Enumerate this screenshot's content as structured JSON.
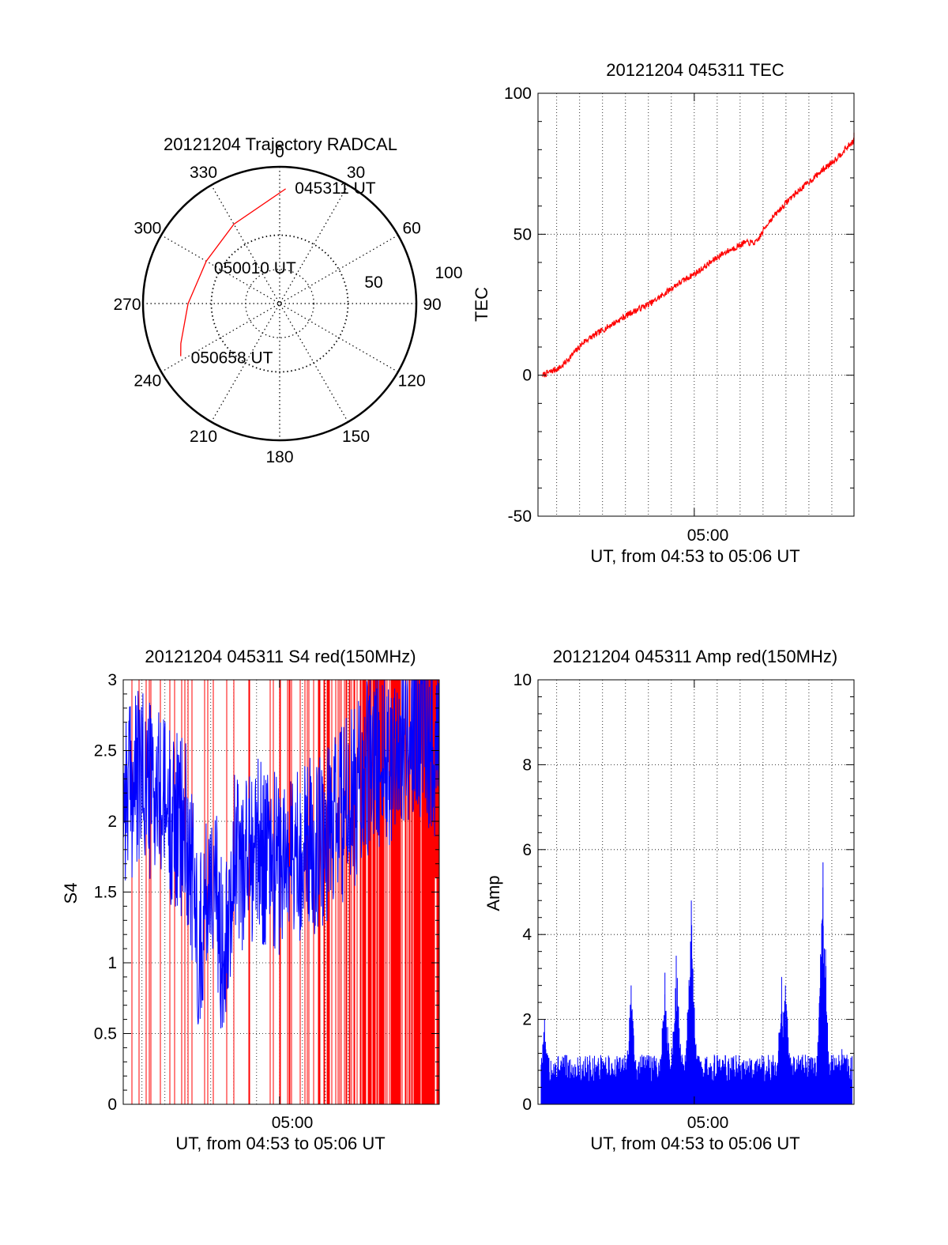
{
  "chart_data": [
    {
      "type": "polar",
      "title": "20121204 Trajectory RADCAL",
      "angle_labels": [
        "0",
        "30",
        "60",
        "90",
        "120",
        "150",
        "180",
        "210",
        "240",
        "270",
        "300",
        "330"
      ],
      "radial_labels": [
        "50",
        "100"
      ],
      "rlim": [
        0,
        100
      ],
      "track_color": "#ff0000",
      "track": [
        {
          "az": 3,
          "r": 84
        },
        {
          "az": 330,
          "r": 67
        },
        {
          "az": 300,
          "r": 62
        },
        {
          "az": 270,
          "r": 67
        },
        {
          "az": 248,
          "r": 78
        },
        {
          "az": 242,
          "r": 82
        }
      ],
      "annotations": [
        {
          "text": "045311 UT",
          "az": 12,
          "r": 87
        },
        {
          "text": "050010 UT",
          "az": 303,
          "r": 49
        },
        {
          "text": "050658 UT",
          "az": 236,
          "r": 70
        }
      ]
    },
    {
      "type": "line",
      "title": "20121204 045311 TEC",
      "xlabel": "UT, from 04:53 to 05:06 UT",
      "ylabel": "TEC",
      "xtick_label": "05:00",
      "xlim": [
        "04:53:11",
        "05:06:58"
      ],
      "ylim": [
        -50,
        100
      ],
      "yticks": [
        "100",
        "50",
        "0",
        "-50"
      ],
      "series": [
        {
          "color": "#ff0000",
          "x": [
            "04:53:11",
            "04:54:00",
            "04:55:00",
            "04:56:00",
            "04:57:00",
            "04:58:00",
            "04:59:00",
            "05:00:00",
            "05:01:00",
            "05:02:00",
            "05:02:30",
            "05:03:00",
            "05:04:00",
            "05:05:00",
            "05:06:00",
            "05:06:58"
          ],
          "y": [
            0,
            3,
            12,
            17,
            22,
            26,
            32,
            37,
            43,
            47,
            47,
            54,
            63,
            70,
            77,
            85
          ]
        }
      ]
    },
    {
      "type": "line",
      "title": "20121204 045311 S4 red(150MHz)",
      "xlabel": "UT, from 04:53 to 05:06 UT",
      "ylabel": "S4",
      "xtick_label": "05:00",
      "xlim": [
        "04:53:11",
        "05:06:58"
      ],
      "ylim": [
        0,
        3
      ],
      "yticks": [
        "3",
        "2.5",
        "2",
        "1.5",
        "1",
        "0.5",
        "0"
      ],
      "series": [
        {
          "name": "",
          "color": "#ff0000",
          "profile": "spikes 0 to 3, denser after 05:01"
        },
        {
          "name": "",
          "color": "#0000ff",
          "x": [
            "04:53:11",
            "04:54:00",
            "04:55:00",
            "04:56:00",
            "04:56:30",
            "04:57:00",
            "04:57:30",
            "04:58:00",
            "04:59:00",
            "05:00:00",
            "05:01:00",
            "05:02:00",
            "05:03:00",
            "05:04:00",
            "05:05:00",
            "05:06:00",
            "05:06:58"
          ],
          "y": [
            2.2,
            2.3,
            2.1,
            1.9,
            1.1,
            1.7,
            1.1,
            1.7,
            1.8,
            1.7,
            1.8,
            1.9,
            2.1,
            2.4,
            2.5,
            2.7,
            2.5
          ]
        }
      ]
    },
    {
      "type": "line",
      "title": "20121204 045311 Amp red(150MHz)",
      "xlabel": "UT, from 04:53 to 05:06 UT",
      "ylabel": "Amp",
      "xtick_label": "05:00",
      "xlim": [
        "04:53:11",
        "05:06:58"
      ],
      "ylim": [
        0,
        10
      ],
      "yticks": [
        "10",
        "8",
        "6",
        "4",
        "2",
        "0"
      ],
      "series": [
        {
          "color": "#0000ff",
          "baseline": 0.9,
          "peaks": [
            {
              "x": "04:53:20",
              "y": 2.0
            },
            {
              "x": "04:57:10",
              "y": 2.8
            },
            {
              "x": "04:58:40",
              "y": 3.1
            },
            {
              "x": "04:59:10",
              "y": 3.5
            },
            {
              "x": "04:59:50",
              "y": 4.8
            },
            {
              "x": "05:03:50",
              "y": 3.0
            },
            {
              "x": "05:04:00",
              "y": 2.8
            },
            {
              "x": "05:05:40",
              "y": 5.7
            },
            {
              "x": "05:06:30",
              "y": 1.3
            }
          ]
        }
      ]
    }
  ]
}
